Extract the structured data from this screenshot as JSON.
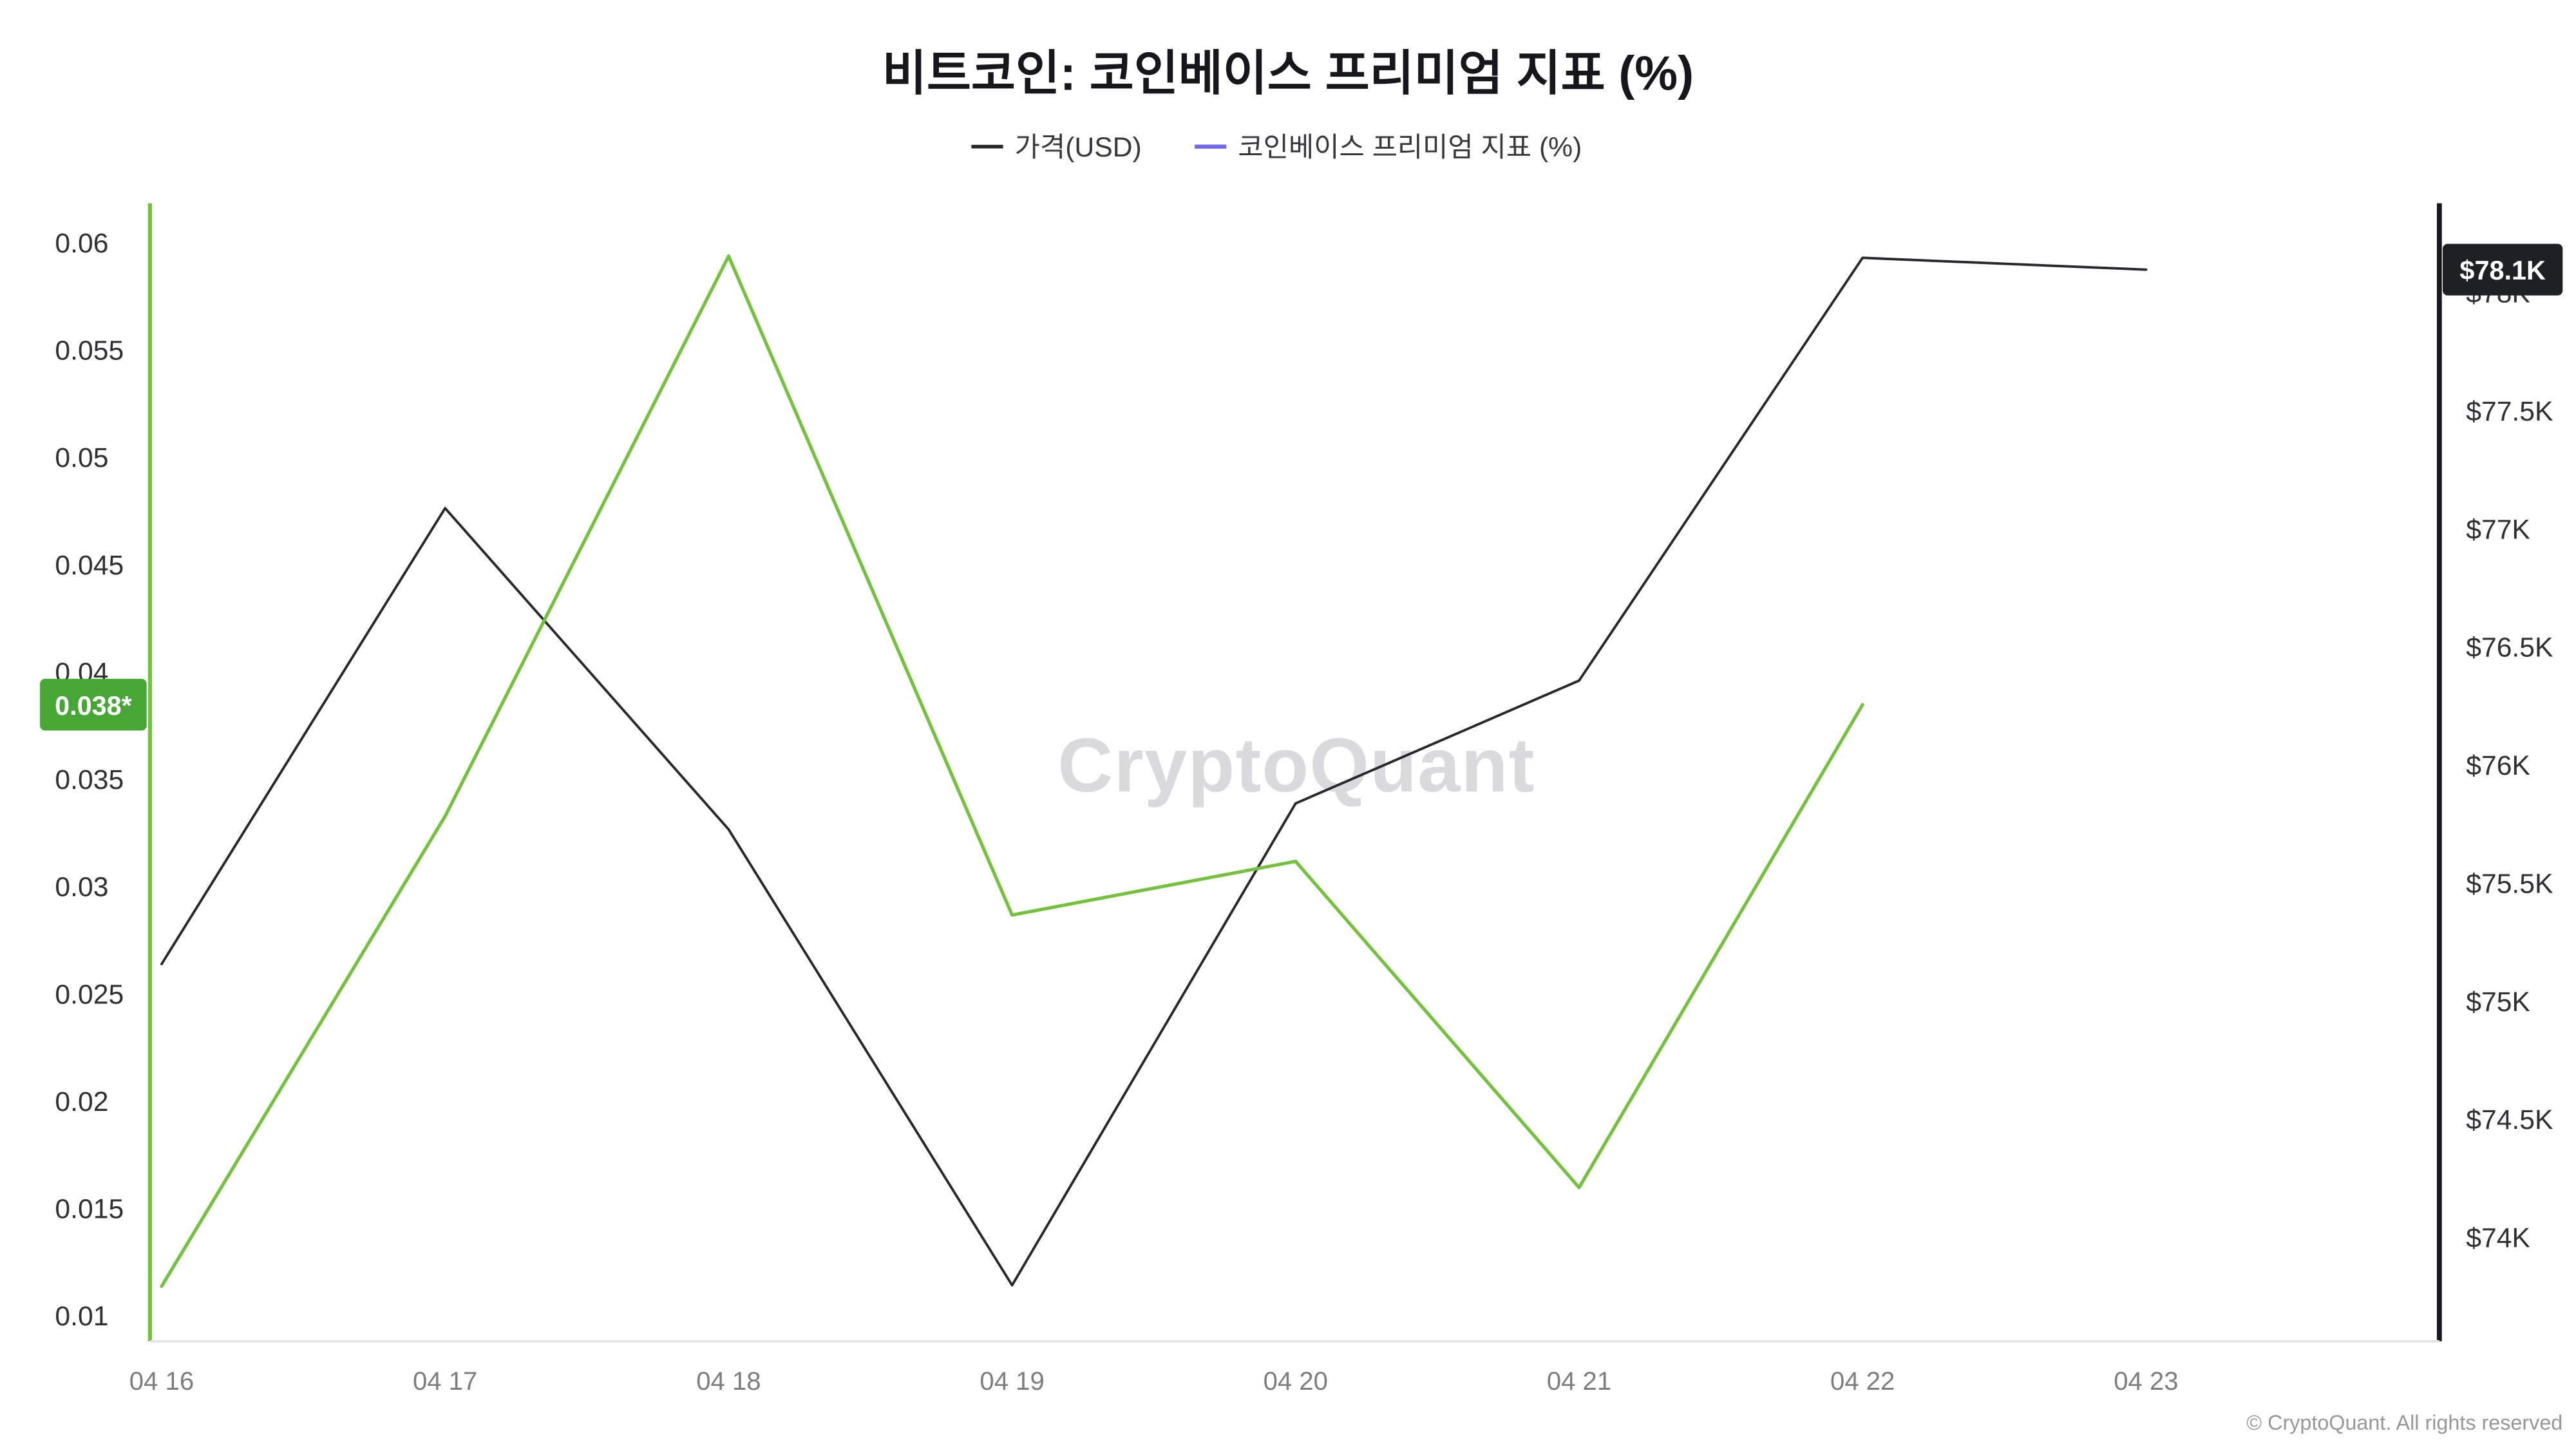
{
  "title": "비트코인: 코인베이스 프리미엄 지표 (%)",
  "watermark": "CryptoQuant",
  "footer": "© CryptoQuant. All rights reserved",
  "legend": [
    {
      "label": "가격(USD)",
      "color": "#26282d"
    },
    {
      "label": "코인베이스 프리미엄 지표 (%)",
      "color": "#7367f0"
    }
  ],
  "badges": {
    "left": {
      "text": "0.038*",
      "value": 0.0385,
      "color": "#46a636"
    },
    "right": {
      "text": "$78.1K",
      "value": 78100,
      "color": "#1d2025"
    }
  },
  "chart_data": {
    "type": "line",
    "title": "비트코인: 코인베이스 프리미엄 지표 (%)",
    "x_labels": [
      "04 16",
      "04 17",
      "04 18",
      "04 19",
      "04 20",
      "04 21",
      "04 22",
      "04 23"
    ],
    "series": [
      {
        "name": "가격(USD)",
        "axis": "right",
        "color": "#26282d",
        "values": [
          75160,
          77090,
          75730,
          73800,
          75840,
          76360,
          78150,
          78100
        ]
      },
      {
        "name": "코인베이스 프리미엄 지표 (%)",
        "axis": "left",
        "color": "#74c13d",
        "values": [
          0.0114,
          0.0333,
          0.0594,
          0.0287,
          0.0312,
          0.016,
          0.0385,
          null
        ]
      }
    ],
    "left_axis": {
      "min": 0.01,
      "max": 0.06,
      "ticks": [
        {
          "label": "0.01",
          "value": 0.01
        },
        {
          "label": "0.015",
          "value": 0.015
        },
        {
          "label": "0.02",
          "value": 0.02
        },
        {
          "label": "0.025",
          "value": 0.025
        },
        {
          "label": "0.03",
          "value": 0.03
        },
        {
          "label": "0.035",
          "value": 0.035
        },
        {
          "label": "0.04",
          "value": 0.04
        },
        {
          "label": "0.045",
          "value": 0.045
        },
        {
          "label": "0.05",
          "value": 0.05
        },
        {
          "label": "0.055",
          "value": 0.055
        },
        {
          "label": "0.06",
          "value": 0.06
        }
      ]
    },
    "right_axis": {
      "min": 74000,
      "max": 78000,
      "ticks": [
        {
          "label": "$74K",
          "value": 74000
        },
        {
          "label": "$74.5K",
          "value": 74500
        },
        {
          "label": "$75K",
          "value": 75000
        },
        {
          "label": "$75.5K",
          "value": 75500
        },
        {
          "label": "$76K",
          "value": 76000
        },
        {
          "label": "$76.5K",
          "value": 76500
        },
        {
          "label": "$77K",
          "value": 77000
        },
        {
          "label": "$77.5K",
          "value": 77500
        },
        {
          "label": "$78K",
          "value": 78000
        }
      ]
    },
    "legend_position": "top-center",
    "grid": false,
    "latest": {
      "premium": "0.038*",
      "price": "$78.1K"
    }
  }
}
